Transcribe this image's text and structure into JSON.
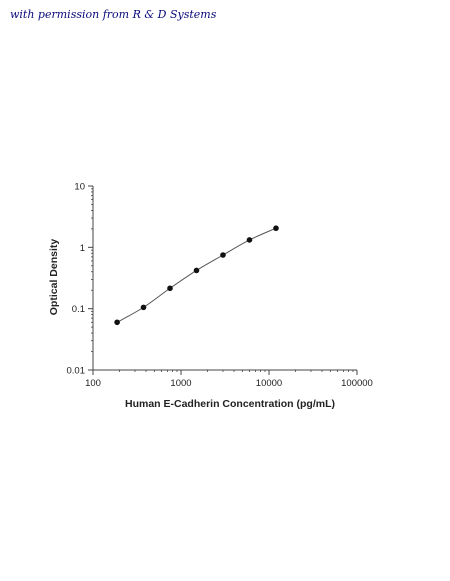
{
  "caption": "with permission from R & D Systems",
  "chart_data": {
    "type": "scatter",
    "title": "",
    "xlabel": "Human E-Cadherin Concentration (pg/mL)",
    "ylabel": "Optical Density",
    "xscale": "log",
    "yscale": "log",
    "xlim": [
      100,
      100000
    ],
    "ylim": [
      0.01,
      10
    ],
    "x_ticks": [
      "100",
      "1000",
      "10000",
      "100000"
    ],
    "y_ticks": [
      "10",
      "1",
      "0.1",
      "0.01"
    ],
    "grid": false,
    "x": [
      188,
      375,
      750,
      1500,
      3000,
      6000,
      12000
    ],
    "y": [
      0.06,
      0.105,
      0.215,
      0.42,
      0.75,
      1.32,
      2.05
    ],
    "point_color": "#111111",
    "line_color": "#555555"
  }
}
